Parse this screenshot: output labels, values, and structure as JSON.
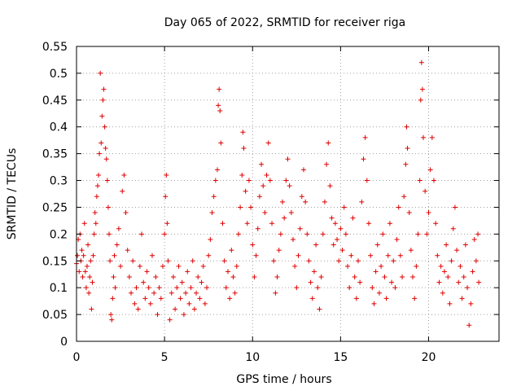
{
  "chart_data": {
    "type": "scatter",
    "title": "Day 065 of 2022, SRMTID for receiver riga",
    "xlabel": "GPS time / hours",
    "ylabel": "SRMTID / TECUs",
    "xlim": [
      0,
      24
    ],
    "ylim": [
      0,
      0.55
    ],
    "xticks": [
      0,
      5,
      10,
      15,
      20
    ],
    "xtick_labels": [
      "0",
      "5",
      "10",
      "15",
      "20"
    ],
    "yticks": [
      0,
      0.05,
      0.1,
      0.15,
      0.2,
      0.25,
      0.3,
      0.35,
      0.4,
      0.45,
      0.5,
      0.55
    ],
    "ytick_labels": [
      "0",
      "0.05",
      "0.1",
      "0.15",
      "0.2",
      "0.25",
      "0.3",
      "0.35",
      "0.4",
      "0.45",
      "0.5",
      "0.55"
    ],
    "grid": true,
    "marker": "+",
    "color": "#e00000",
    "series": [
      {
        "name": "SRMTID",
        "points": [
          [
            0.0,
            0.145
          ],
          [
            0.05,
            0.16
          ],
          [
            0.1,
            0.19
          ],
          [
            0.15,
            0.13
          ],
          [
            0.2,
            0.2
          ],
          [
            0.25,
            0.15
          ],
          [
            0.3,
            0.17
          ],
          [
            0.35,
            0.12
          ],
          [
            0.4,
            0.16
          ],
          [
            0.45,
            0.22
          ],
          [
            0.5,
            0.13
          ],
          [
            0.55,
            0.1
          ],
          [
            0.6,
            0.14
          ],
          [
            0.65,
            0.18
          ],
          [
            0.7,
            0.09
          ],
          [
            0.75,
            0.12
          ],
          [
            0.8,
            0.15
          ],
          [
            0.85,
            0.06
          ],
          [
            0.9,
            0.11
          ],
          [
            0.95,
            0.16
          ],
          [
            1.0,
            0.2
          ],
          [
            1.05,
            0.24
          ],
          [
            1.1,
            0.22
          ],
          [
            1.15,
            0.27
          ],
          [
            1.2,
            0.29
          ],
          [
            1.25,
            0.31
          ],
          [
            1.3,
            0.35
          ],
          [
            1.35,
            0.5
          ],
          [
            1.4,
            0.37
          ],
          [
            1.45,
            0.42
          ],
          [
            1.5,
            0.45
          ],
          [
            1.55,
            0.47
          ],
          [
            1.6,
            0.4
          ],
          [
            1.65,
            0.36
          ],
          [
            1.7,
            0.34
          ],
          [
            1.75,
            0.3
          ],
          [
            1.8,
            0.25
          ],
          [
            1.85,
            0.2
          ],
          [
            1.9,
            0.15
          ],
          [
            1.95,
            0.05
          ],
          [
            2.0,
            0.04
          ],
          [
            2.05,
            0.08
          ],
          [
            2.1,
            0.12
          ],
          [
            2.15,
            0.16
          ],
          [
            2.2,
            0.1
          ],
          [
            2.3,
            0.18
          ],
          [
            2.4,
            0.21
          ],
          [
            2.5,
            0.14
          ],
          [
            2.6,
            0.28
          ],
          [
            2.7,
            0.31
          ],
          [
            2.8,
            0.24
          ],
          [
            2.9,
            0.17
          ],
          [
            3.0,
            0.12
          ],
          [
            3.1,
            0.09
          ],
          [
            3.2,
            0.15
          ],
          [
            3.3,
            0.07
          ],
          [
            3.4,
            0.1
          ],
          [
            3.5,
            0.06
          ],
          [
            3.6,
            0.14
          ],
          [
            3.7,
            0.2
          ],
          [
            3.8,
            0.11
          ],
          [
            3.9,
            0.08
          ],
          [
            4.0,
            0.13
          ],
          [
            4.1,
            0.1
          ],
          [
            4.2,
            0.07
          ],
          [
            4.3,
            0.16
          ],
          [
            4.4,
            0.09
          ],
          [
            4.5,
            0.12
          ],
          [
            4.6,
            0.05
          ],
          [
            4.7,
            0.1
          ],
          [
            4.8,
            0.08
          ],
          [
            4.9,
            0.14
          ],
          [
            5.0,
            0.2
          ],
          [
            5.05,
            0.27
          ],
          [
            5.1,
            0.31
          ],
          [
            5.15,
            0.22
          ],
          [
            5.2,
            0.15
          ],
          [
            5.3,
            0.04
          ],
          [
            5.4,
            0.09
          ],
          [
            5.5,
            0.12
          ],
          [
            5.6,
            0.06
          ],
          [
            5.7,
            0.1
          ],
          [
            5.8,
            0.14
          ],
          [
            5.9,
            0.08
          ],
          [
            6.0,
            0.11
          ],
          [
            6.1,
            0.05
          ],
          [
            6.2,
            0.09
          ],
          [
            6.3,
            0.13
          ],
          [
            6.4,
            0.07
          ],
          [
            6.5,
            0.1
          ],
          [
            6.6,
            0.15
          ],
          [
            6.7,
            0.06
          ],
          [
            6.8,
            0.09
          ],
          [
            6.9,
            0.12
          ],
          [
            7.0,
            0.08
          ],
          [
            7.1,
            0.11
          ],
          [
            7.2,
            0.14
          ],
          [
            7.3,
            0.07
          ],
          [
            7.4,
            0.1
          ],
          [
            7.5,
            0.16
          ],
          [
            7.6,
            0.19
          ],
          [
            7.7,
            0.24
          ],
          [
            7.8,
            0.27
          ],
          [
            7.9,
            0.3
          ],
          [
            8.0,
            0.32
          ],
          [
            8.05,
            0.44
          ],
          [
            8.1,
            0.47
          ],
          [
            8.15,
            0.43
          ],
          [
            8.2,
            0.37
          ],
          [
            8.3,
            0.22
          ],
          [
            8.4,
            0.15
          ],
          [
            8.5,
            0.1
          ],
          [
            8.6,
            0.13
          ],
          [
            8.7,
            0.08
          ],
          [
            8.8,
            0.17
          ],
          [
            8.9,
            0.12
          ],
          [
            9.0,
            0.09
          ],
          [
            9.1,
            0.14
          ],
          [
            9.2,
            0.2
          ],
          [
            9.3,
            0.25
          ],
          [
            9.4,
            0.31
          ],
          [
            9.45,
            0.39
          ],
          [
            9.5,
            0.36
          ],
          [
            9.6,
            0.28
          ],
          [
            9.7,
            0.22
          ],
          [
            9.8,
            0.3
          ],
          [
            9.9,
            0.25
          ],
          [
            10.0,
            0.18
          ],
          [
            10.1,
            0.12
          ],
          [
            10.2,
            0.16
          ],
          [
            10.3,
            0.21
          ],
          [
            10.4,
            0.27
          ],
          [
            10.5,
            0.33
          ],
          [
            10.6,
            0.29
          ],
          [
            10.7,
            0.24
          ],
          [
            10.8,
            0.31
          ],
          [
            10.9,
            0.37
          ],
          [
            11.0,
            0.3
          ],
          [
            11.1,
            0.22
          ],
          [
            11.2,
            0.15
          ],
          [
            11.3,
            0.09
          ],
          [
            11.4,
            0.12
          ],
          [
            11.5,
            0.17
          ],
          [
            11.6,
            0.2
          ],
          [
            11.7,
            0.26
          ],
          [
            11.8,
            0.23
          ],
          [
            11.9,
            0.3
          ],
          [
            12.0,
            0.34
          ],
          [
            12.1,
            0.29
          ],
          [
            12.2,
            0.24
          ],
          [
            12.3,
            0.19
          ],
          [
            12.4,
            0.14
          ],
          [
            12.5,
            0.1
          ],
          [
            12.6,
            0.16
          ],
          [
            12.7,
            0.21
          ],
          [
            12.8,
            0.27
          ],
          [
            12.9,
            0.32
          ],
          [
            13.0,
            0.26
          ],
          [
            13.1,
            0.2
          ],
          [
            13.2,
            0.15
          ],
          [
            13.3,
            0.11
          ],
          [
            13.4,
            0.08
          ],
          [
            13.5,
            0.13
          ],
          [
            13.6,
            0.18
          ],
          [
            13.7,
            0.1
          ],
          [
            13.8,
            0.06
          ],
          [
            13.9,
            0.12
          ],
          [
            14.0,
            0.2
          ],
          [
            14.1,
            0.26
          ],
          [
            14.2,
            0.33
          ],
          [
            14.3,
            0.37
          ],
          [
            14.4,
            0.29
          ],
          [
            14.5,
            0.23
          ],
          [
            14.6,
            0.18
          ],
          [
            14.7,
            0.22
          ],
          [
            14.8,
            0.19
          ],
          [
            14.9,
            0.15
          ],
          [
            15.0,
            0.21
          ],
          [
            15.1,
            0.17
          ],
          [
            15.2,
            0.25
          ],
          [
            15.3,
            0.2
          ],
          [
            15.4,
            0.14
          ],
          [
            15.5,
            0.1
          ],
          [
            15.6,
            0.16
          ],
          [
            15.7,
            0.23
          ],
          [
            15.8,
            0.12
          ],
          [
            15.9,
            0.08
          ],
          [
            16.0,
            0.15
          ],
          [
            16.1,
            0.11
          ],
          [
            16.2,
            0.26
          ],
          [
            16.3,
            0.34
          ],
          [
            16.4,
            0.38
          ],
          [
            16.5,
            0.3
          ],
          [
            16.6,
            0.22
          ],
          [
            16.7,
            0.16
          ],
          [
            16.8,
            0.1
          ],
          [
            16.9,
            0.07
          ],
          [
            17.0,
            0.13
          ],
          [
            17.1,
            0.18
          ],
          [
            17.2,
            0.09
          ],
          [
            17.3,
            0.14
          ],
          [
            17.4,
            0.2
          ],
          [
            17.5,
            0.12
          ],
          [
            17.6,
            0.08
          ],
          [
            17.7,
            0.16
          ],
          [
            17.8,
            0.22
          ],
          [
            17.9,
            0.11
          ],
          [
            18.0,
            0.15
          ],
          [
            18.1,
            0.1
          ],
          [
            18.2,
            0.19
          ],
          [
            18.3,
            0.25
          ],
          [
            18.4,
            0.16
          ],
          [
            18.5,
            0.12
          ],
          [
            18.6,
            0.27
          ],
          [
            18.7,
            0.33
          ],
          [
            18.75,
            0.4
          ],
          [
            18.8,
            0.36
          ],
          [
            18.9,
            0.24
          ],
          [
            19.0,
            0.17
          ],
          [
            19.1,
            0.12
          ],
          [
            19.2,
            0.08
          ],
          [
            19.3,
            0.14
          ],
          [
            19.4,
            0.2
          ],
          [
            19.5,
            0.3
          ],
          [
            19.55,
            0.45
          ],
          [
            19.6,
            0.52
          ],
          [
            19.65,
            0.47
          ],
          [
            19.7,
            0.38
          ],
          [
            19.8,
            0.28
          ],
          [
            19.9,
            0.2
          ],
          [
            20.0,
            0.24
          ],
          [
            20.1,
            0.32
          ],
          [
            20.2,
            0.38
          ],
          [
            20.3,
            0.3
          ],
          [
            20.4,
            0.22
          ],
          [
            20.5,
            0.16
          ],
          [
            20.6,
            0.11
          ],
          [
            20.7,
            0.14
          ],
          [
            20.8,
            0.09
          ],
          [
            20.9,
            0.13
          ],
          [
            21.0,
            0.18
          ],
          [
            21.1,
            0.12
          ],
          [
            21.2,
            0.07
          ],
          [
            21.3,
            0.15
          ],
          [
            21.4,
            0.21
          ],
          [
            21.5,
            0.25
          ],
          [
            21.6,
            0.17
          ],
          [
            21.7,
            0.11
          ],
          [
            21.8,
            0.14
          ],
          [
            21.9,
            0.08
          ],
          [
            22.0,
            0.12
          ],
          [
            22.1,
            0.18
          ],
          [
            22.2,
            0.1
          ],
          [
            22.3,
            0.03
          ],
          [
            22.4,
            0.07
          ],
          [
            22.5,
            0.13
          ],
          [
            22.6,
            0.19
          ],
          [
            22.7,
            0.15
          ],
          [
            22.8,
            0.2
          ],
          [
            22.85,
            0.11
          ]
        ]
      }
    ]
  }
}
